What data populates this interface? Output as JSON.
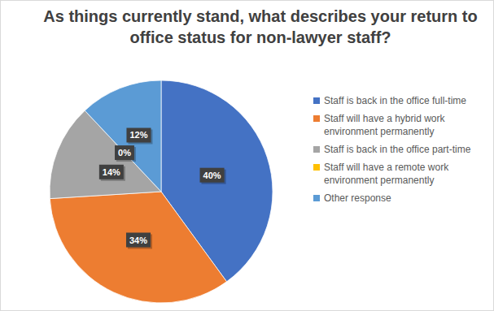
{
  "chart_data": {
    "type": "pie",
    "title": "As things currently stand, what describes your return to office status for non-lawyer staff?",
    "categories": [
      "Staff is back in the office full-time",
      "Staff will have a hybrid work environment permanently",
      "Staff is back in the office part-time",
      "Staff will have a remote work environment permanently",
      "Other response"
    ],
    "values": [
      40,
      34,
      14,
      0,
      12
    ],
    "value_labels": [
      "40%",
      "34%",
      "14%",
      "0%",
      "12%"
    ],
    "colors": [
      "#4472c4",
      "#ed7d31",
      "#a5a5a5",
      "#ffc000",
      "#5b9bd5"
    ],
    "data_labels": true,
    "legend": "right"
  }
}
